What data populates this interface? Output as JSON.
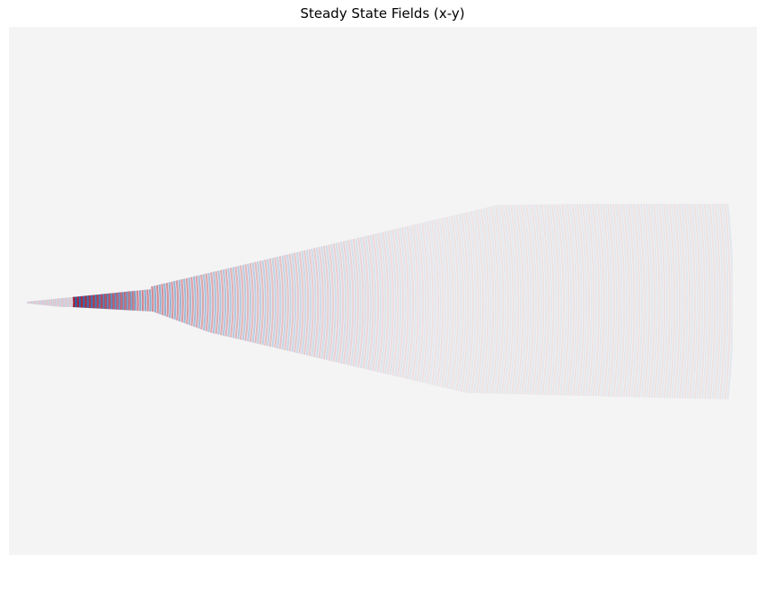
{
  "chart_data": {
    "type": "heatmap",
    "title": "Steady State Fields (x-y)",
    "xlabel": "",
    "ylabel": "",
    "axes_visible": false,
    "grid": false,
    "legend": "none",
    "colormap": [
      "#b2182b",
      "#f4f4f4",
      "#2166ac"
    ],
    "field": {
      "kind": "diverging field waveguide beam, emanating rightward and spreading out"
    }
  }
}
